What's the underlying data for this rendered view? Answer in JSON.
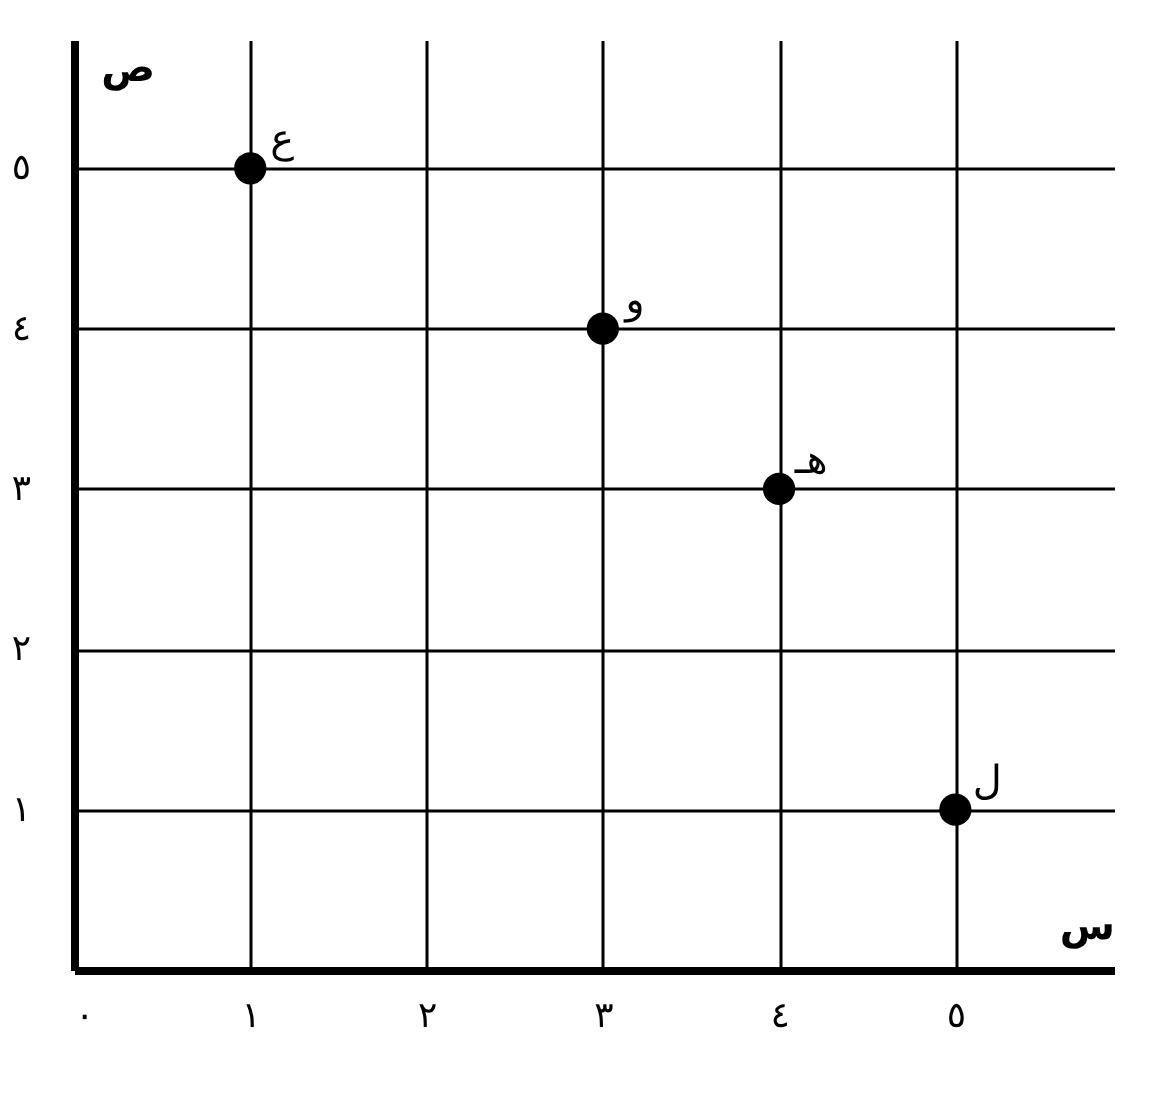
{
  "chart_data": {
    "type": "scatter",
    "xlabel": "س",
    "ylabel": "ص",
    "x": [
      1,
      3,
      4,
      5
    ],
    "series": [
      {
        "color": "#000000",
        "values": [
          5,
          4,
          3,
          1
        ]
      }
    ],
    "annotations": [
      {
        "text": "ع",
        "x": 1,
        "y": 5
      },
      {
        "text": "و",
        "x": 3,
        "y": 4
      },
      {
        "text": "هـ",
        "x": 4,
        "y": 3
      },
      {
        "text": "ل",
        "x": 5,
        "y": 1
      }
    ],
    "xlim": [
      0,
      5.9
    ],
    "ylim": [
      0,
      5.8
    ],
    "xticks": [
      {
        "value": 0,
        "label": "٠"
      },
      {
        "value": 1,
        "label": "١"
      },
      {
        "value": 2,
        "label": "٢"
      },
      {
        "value": 3,
        "label": "٣"
      },
      {
        "value": 4,
        "label": "٤"
      },
      {
        "value": 5,
        "label": "٥"
      }
    ],
    "yticks": [
      {
        "value": 1,
        "label": "١"
      },
      {
        "value": 2,
        "label": "٢"
      },
      {
        "value": 3,
        "label": "٣"
      },
      {
        "value": 4,
        "label": "٤"
      },
      {
        "value": 5,
        "label": "٥"
      }
    ],
    "grid": true,
    "legend": false,
    "marker": "circle"
  }
}
